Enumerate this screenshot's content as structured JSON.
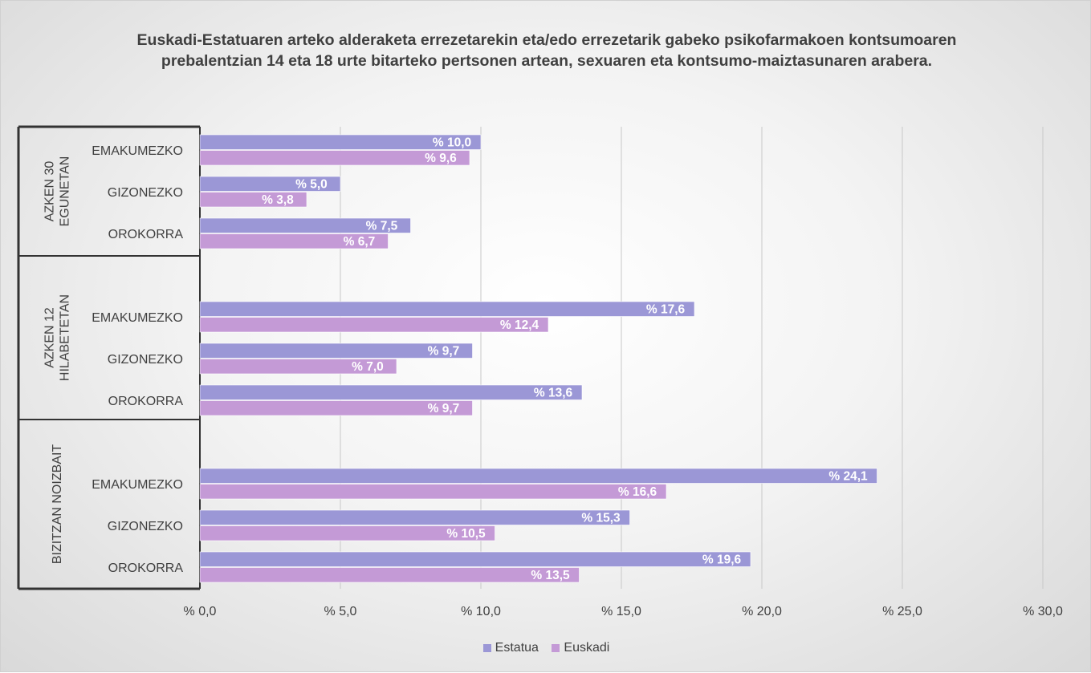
{
  "chart_data": {
    "type": "bar",
    "orientation": "horizontal",
    "title": "Euskadi-Estatuaren arteko alderaketa errezetarekin eta/edo errezetarik gabeko psikofarmakoen kontsumoaren prebalentzian 14 eta 18 urte bitarteko pertsonen artean, sexuaren eta kontsumo-maiztasunaren arabera.",
    "groups": [
      {
        "label": "AZKEN 30 EGUNETAN",
        "label_lines": [
          "AZKEN 30",
          "EGUNETAN"
        ],
        "categories": [
          "EMAKUMEZKO",
          "GIZONEZKO",
          "OROKORRA"
        ]
      },
      {
        "label": "AZKEN 12 HILABETETAN",
        "label_lines": [
          "AZKEN 12",
          "HILABETETAN"
        ],
        "categories": [
          "EMAKUMEZKO",
          "GIZONEZKO",
          "OROKORRA"
        ]
      },
      {
        "label": "BIZITZAN NOIZBAIT",
        "label_lines": [
          "BIZITZAN NOIZBAIT"
        ],
        "categories": [
          "EMAKUMEZKO",
          "GIZONEZKO",
          "OROKORRA"
        ]
      }
    ],
    "series": [
      {
        "name": "Estatua",
        "color": "#9b97d6",
        "values": [
          10.0,
          5.0,
          7.5,
          17.6,
          9.7,
          13.6,
          24.1,
          15.3,
          19.6
        ]
      },
      {
        "name": "Euskadi",
        "color": "#c49ad6",
        "values": [
          9.6,
          3.8,
          6.7,
          12.4,
          7.0,
          9.7,
          16.6,
          10.5,
          13.5
        ]
      }
    ],
    "xlim": [
      0,
      30
    ],
    "x_ticks": [
      0,
      5,
      10,
      15,
      20,
      25,
      30
    ],
    "x_tick_labels": [
      "% 0,0",
      "% 5,0",
      "% 10,0",
      "% 15,0",
      "% 20,0",
      "% 25,0",
      "% 30,0"
    ],
    "data_labels": [
      [
        "% 10,0",
        "% 5,0",
        "% 7,5",
        "% 17,6",
        "% 9,7",
        "% 13,6",
        "% 24,1",
        "% 15,3",
        "% 19,6"
      ],
      [
        "% 9,6",
        "% 3,8",
        "% 6,7",
        "% 12,4",
        "% 7,0",
        "% 9,7",
        "% 16,6",
        "% 10,5",
        "% 13,5"
      ]
    ],
    "grid": true,
    "legend_position": "bottom"
  }
}
